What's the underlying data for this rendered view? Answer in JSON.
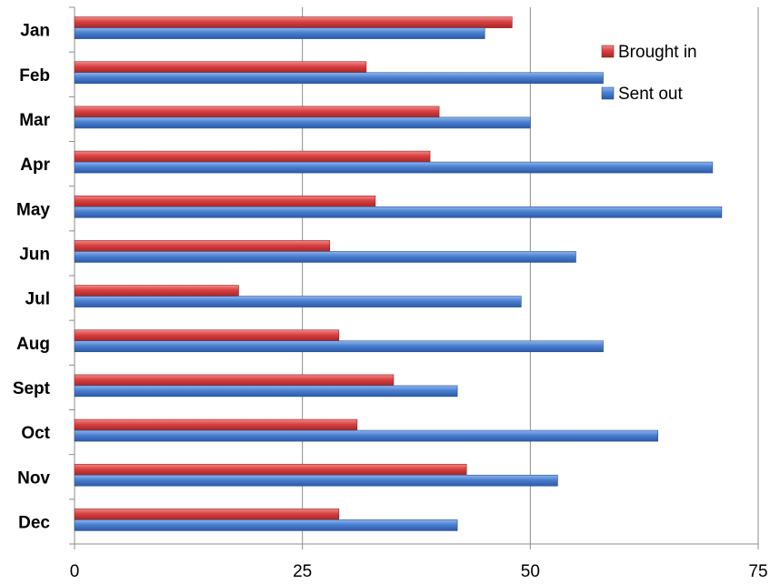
{
  "chart_data": {
    "type": "bar",
    "orientation": "horizontal",
    "categories": [
      "Jan",
      "Feb",
      "Mar",
      "Apr",
      "May",
      "Jun",
      "Jul",
      "Aug",
      "Sept",
      "Oct",
      "Nov",
      "Dec"
    ],
    "series": [
      {
        "name": "Brought in",
        "color": "#d94040",
        "values": [
          48,
          32,
          40,
          39,
          33,
          28,
          18,
          29,
          35,
          31,
          43,
          29
        ]
      },
      {
        "name": "Sent out",
        "color": "#4a7fd0",
        "values": [
          45,
          58,
          50,
          70,
          71,
          55,
          49,
          58,
          42,
          64,
          53,
          42
        ]
      }
    ],
    "xlim": [
      0,
      75
    ],
    "xticks": [
      0,
      25,
      50,
      75
    ],
    "xtick_labels": [
      "0",
      "25",
      "50",
      "75"
    ],
    "grid": true,
    "legend": {
      "position": "top-right",
      "entries": [
        "Brought in",
        "Sent out"
      ]
    }
  }
}
